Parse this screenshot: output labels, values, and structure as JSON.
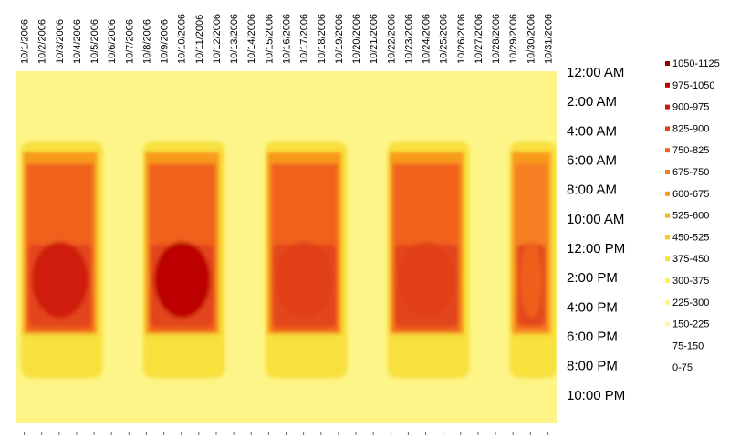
{
  "chart_data": {
    "type": "heatmap",
    "title": "",
    "xlabel": "",
    "ylabel": "",
    "x_categories": [
      "10/1/2006",
      "10/2/2006",
      "10/3/2006",
      "10/4/2006",
      "10/5/2006",
      "10/6/2006",
      "10/7/2006",
      "10/8/2006",
      "10/9/2006",
      "10/10/2006",
      "10/11/2006",
      "10/12/2006",
      "10/13/2006",
      "10/14/2006",
      "10/15/2006",
      "10/16/2006",
      "10/17/2006",
      "10/18/2006",
      "10/19/2006",
      "10/20/2006",
      "10/21/2006",
      "10/22/2006",
      "10/23/2006",
      "10/24/2006",
      "10/25/2006",
      "10/26/2006",
      "10/27/2006",
      "10/28/2006",
      "10/29/2006",
      "10/30/2006",
      "10/31/2006"
    ],
    "y_tick_labels": [
      "12:00 AM",
      "2:00 AM",
      "4:00 AM",
      "6:00 AM",
      "8:00 AM",
      "10:00 AM",
      "12:00 PM",
      "2:00 PM",
      "4:00 PM",
      "6:00 PM",
      "8:00 PM",
      "10:00 PM"
    ],
    "legend": {
      "placement": "right",
      "bins": [
        {
          "label": "1050-1125",
          "color": "#8b0000"
        },
        {
          "label": "975-1050",
          "color": "#b70000"
        },
        {
          "label": "900-975",
          "color": "#cc1a0a"
        },
        {
          "label": "825-900",
          "color": "#e0401a"
        },
        {
          "label": "750-825",
          "color": "#f0621e"
        },
        {
          "label": "675-750",
          "color": "#f57e22"
        },
        {
          "label": "600-675",
          "color": "#f89a1f"
        },
        {
          "label": "525-600",
          "color": "#f7b21d"
        },
        {
          "label": "450-525",
          "color": "#f6cc2a"
        },
        {
          "label": "375-450",
          "color": "#f8e03c"
        },
        {
          "label": "300-375",
          "color": "#fbee5a"
        },
        {
          "label": "225-300",
          "color": "#fdf588"
        },
        {
          "label": "150-225",
          "color": "#fefaa8"
        },
        {
          "label": "75-150",
          "color": "#ffffff"
        },
        {
          "label": "0-75",
          "color": "#ffffff"
        }
      ]
    },
    "background_bin": "225-300",
    "weeks": [
      {
        "start_day": 1,
        "end_day": 5,
        "peak_bin": "900-975",
        "morning_bin": "750-825",
        "evening_bin": "375-450"
      },
      {
        "start_day": 8,
        "end_day": 12,
        "peak_bin": "975-1050",
        "morning_bin": "750-825",
        "evening_bin": "375-450"
      },
      {
        "start_day": 15,
        "end_day": 19,
        "peak_bin": "825-900",
        "morning_bin": "750-825",
        "evening_bin": "375-450"
      },
      {
        "start_day": 22,
        "end_day": 26,
        "peak_bin": "825-900",
        "morning_bin": "750-825",
        "evening_bin": "375-450"
      },
      {
        "start_day": 29,
        "end_day": 31,
        "peak_bin": "750-825",
        "morning_bin": "675-750",
        "evening_bin": "375-450"
      }
    ]
  }
}
